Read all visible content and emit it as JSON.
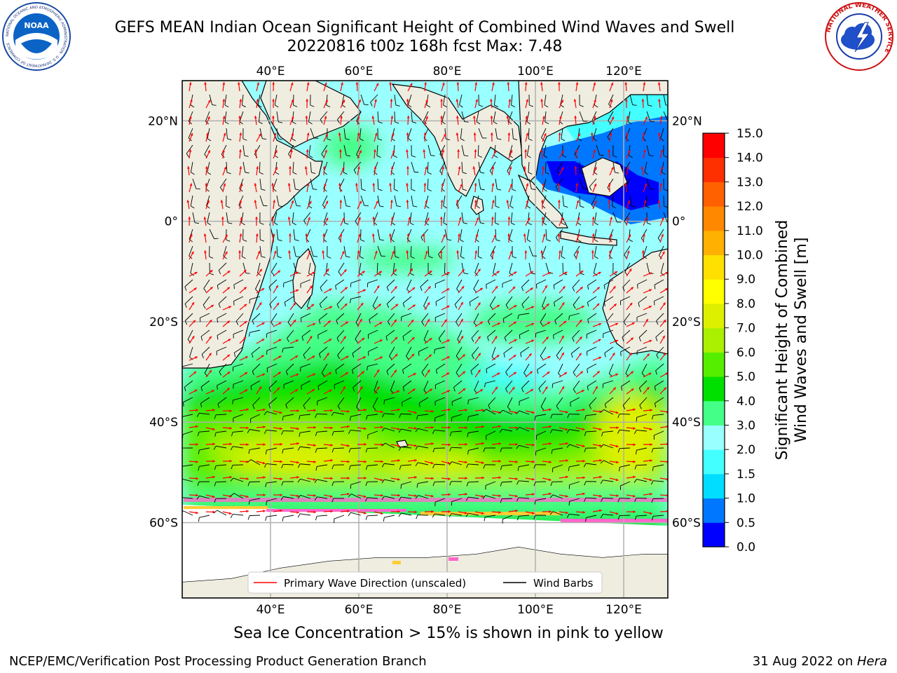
{
  "title_line1": "GEFS MEAN Indian Ocean Significant Height of Combined Wind Waves and Swell",
  "title_line2": "20220816 t00z 168h fcst   Max: 7.48",
  "logos": {
    "left": "NOAA",
    "left_ring": "NATIONAL OCEANIC AND ATMOSPHERIC ADMINISTRATION · U.S. DEPARTMENT OF COMMERCE",
    "right_ring": "NATIONAL WEATHER SERVICE"
  },
  "map": {
    "lon_range": [
      20,
      130
    ],
    "lat_range": [
      -75,
      28
    ],
    "lon_ticks": [
      {
        "value": 40,
        "label": "40°E"
      },
      {
        "value": 60,
        "label": "60°E"
      },
      {
        "value": 80,
        "label": "80°E"
      },
      {
        "value": 100,
        "label": "100°E"
      },
      {
        "value": 120,
        "label": "120°E"
      }
    ],
    "lat_ticks": [
      {
        "value": 20,
        "label": "20°N"
      },
      {
        "value": 0,
        "label": "0°"
      },
      {
        "value": -20,
        "label": "20°S"
      },
      {
        "value": -40,
        "label": "40°S"
      },
      {
        "value": -60,
        "label": "60°S"
      }
    ],
    "grid": true
  },
  "legend": {
    "placement": "lower-center",
    "entries": [
      {
        "label": "Primary Wave Direction (unscaled)",
        "color": "#ff0000"
      },
      {
        "label": "Wind Barbs",
        "color": "#000000"
      }
    ]
  },
  "colorbar": {
    "label_line1": "Significant Height of Combined",
    "label_line2": "Wind Waves and Swell [m]",
    "ticks": [
      "0.0",
      "0.5",
      "1.0",
      "1.5",
      "2.0",
      "3.0",
      "4.0",
      "5.0",
      "6.0",
      "7.0",
      "8.0",
      "9.0",
      "10.0",
      "11.0",
      "12.0",
      "13.0",
      "14.0",
      "15.0"
    ],
    "colors": [
      "#0000ff",
      "#0077ff",
      "#00ddff",
      "#44ffff",
      "#99ffff",
      "#44ff88",
      "#00e000",
      "#55ee00",
      "#aaf000",
      "#ddf000",
      "#ffff00",
      "#ffe000",
      "#ffb000",
      "#ff8800",
      "#ff6000",
      "#ff3000",
      "#ff0000"
    ]
  },
  "sea_ice_note": "Sea Ice Concentration > 15% is shown in pink to yellow",
  "footer_left": "NCEP/EMC/Verification Post Processing Product Generation Branch",
  "footer_right_date": "31 Aug 2022 on ",
  "footer_right_host": "Hera"
}
